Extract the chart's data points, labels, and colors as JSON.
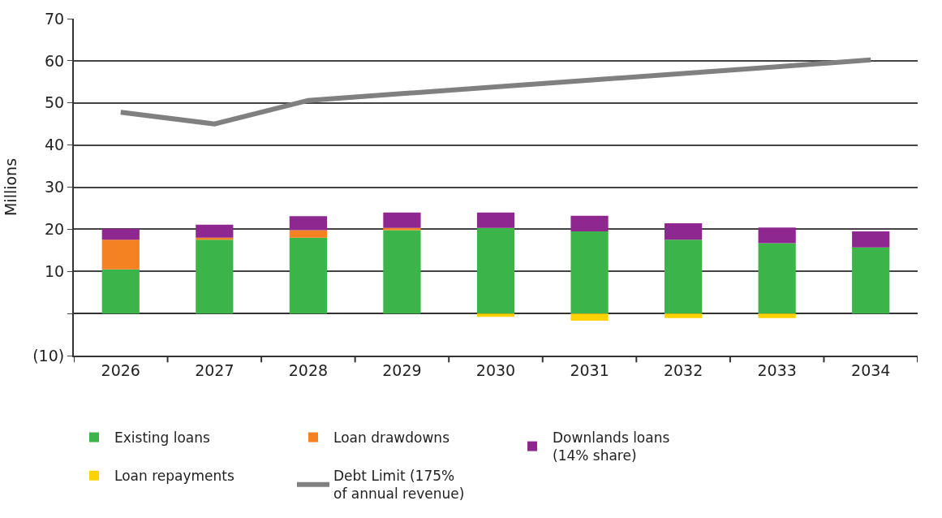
{
  "chart_data": {
    "type": "bar",
    "stacked": true,
    "ylabel": "Millions",
    "categories": [
      "2026",
      "2027",
      "2028",
      "2029",
      "2030",
      "2031",
      "2032",
      "2033",
      "2034"
    ],
    "series": [
      {
        "name": "Existing loans",
        "color": "#3bb54a",
        "values": [
          10.5,
          17.5,
          18.0,
          19.8,
          20.3,
          19.5,
          17.5,
          16.7,
          15.7
        ]
      },
      {
        "name": "Loan drawdowns",
        "color": "#f48220",
        "values": [
          7.0,
          0.5,
          1.8,
          0.5,
          null,
          null,
          null,
          null,
          null
        ]
      },
      {
        "name": "Downlands loans\n(14% share)",
        "color": "#8e278f",
        "values": [
          2.6,
          3.1,
          3.3,
          3.7,
          3.7,
          3.7,
          3.9,
          3.7,
          3.8
        ]
      },
      {
        "name": "Loan repayments",
        "color": "#fdd200",
        "values": [
          null,
          null,
          null,
          null,
          -0.8,
          -1.7,
          -1.1,
          -1.1,
          null
        ]
      },
      {
        "name": "Debt Limit (175%\nof annual revenue)",
        "color": "#808080",
        "type": "line",
        "values": [
          47.8,
          45.0,
          50.6,
          52.2,
          53.8,
          55.4,
          57.0,
          58.6,
          60.2
        ]
      }
    ],
    "ylim": [
      -10,
      70
    ],
    "yticks": [
      {
        "value": -10,
        "label": "(10)"
      },
      {
        "value": 0,
        "label": null
      },
      10,
      20,
      30,
      40,
      50,
      60,
      70
    ],
    "grid": "y",
    "legend": "bottom",
    "marker": "none"
  }
}
